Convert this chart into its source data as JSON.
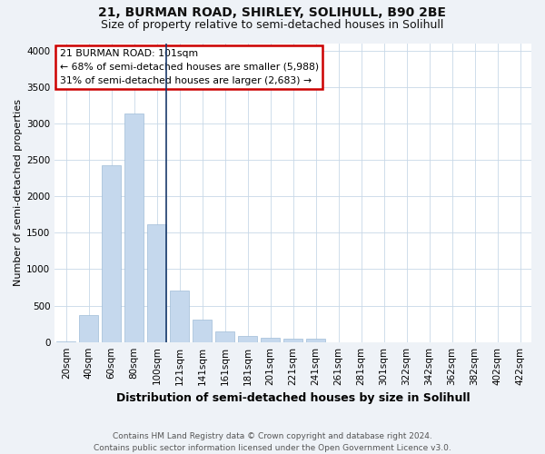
{
  "title": "21, BURMAN ROAD, SHIRLEY, SOLIHULL, B90 2BE",
  "subtitle": "Size of property relative to semi-detached houses in Solihull",
  "xlabel": "Distribution of semi-detached houses by size in Solihull",
  "ylabel": "Number of semi-detached properties",
  "footer1": "Contains HM Land Registry data © Crown copyright and database right 2024.",
  "footer2": "Contains public sector information licensed under the Open Government Licence v3.0.",
  "bar_labels": [
    "20sqm",
    "40sqm",
    "60sqm",
    "80sqm",
    "100sqm",
    "121sqm",
    "141sqm",
    "161sqm",
    "181sqm",
    "201sqm",
    "221sqm",
    "241sqm",
    "261sqm",
    "281sqm",
    "301sqm",
    "322sqm",
    "342sqm",
    "362sqm",
    "382sqm",
    "402sqm",
    "422sqm"
  ],
  "bar_values": [
    5,
    370,
    2420,
    3130,
    1620,
    700,
    310,
    150,
    80,
    60,
    45,
    40,
    0,
    0,
    0,
    0,
    0,
    0,
    0,
    0,
    0
  ],
  "bar_color": "#c5d8ed",
  "bar_edge_color": "#a0bcd8",
  "property_line_index": 4,
  "annotation_text1": "21 BURMAN ROAD: 101sqm",
  "annotation_text2": "← 68% of semi-detached houses are smaller (5,988)",
  "annotation_text3": "31% of semi-detached houses are larger (2,683) →",
  "annotation_box_color": "#ffffff",
  "annotation_box_edge": "#cc0000",
  "ylim": [
    0,
    4100
  ],
  "yticks": [
    0,
    500,
    1000,
    1500,
    2000,
    2500,
    3000,
    3500,
    4000
  ],
  "bg_color": "#eef2f7",
  "plot_bg_color": "#ffffff",
  "grid_color": "#c8d8e8",
  "title_fontsize": 10,
  "subtitle_fontsize": 9,
  "ylabel_fontsize": 8,
  "xlabel_fontsize": 9,
  "tick_fontsize": 7.5,
  "footer_fontsize": 6.5
}
